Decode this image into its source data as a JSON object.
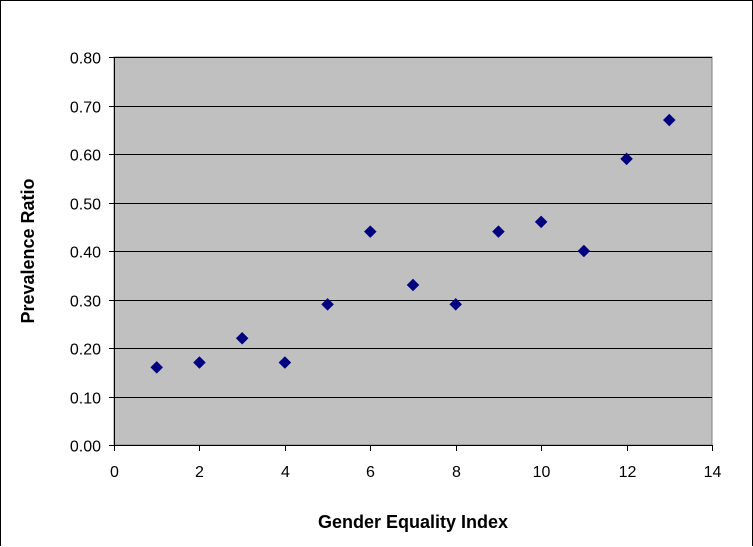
{
  "chart_data": {
    "type": "scatter",
    "title": "",
    "xlabel": "Gender Equality Index",
    "ylabel": "Prevalence Ratio",
    "xlim": [
      0,
      14
    ],
    "ylim": [
      0,
      0.8
    ],
    "xticks": [
      0,
      2,
      4,
      6,
      8,
      10,
      12,
      14
    ],
    "yticks": [
      0.0,
      0.1,
      0.2,
      0.3,
      0.4,
      0.5,
      0.6,
      0.7,
      0.8
    ],
    "xtick_labels": [
      "0",
      "2",
      "4",
      "6",
      "8",
      "10",
      "12",
      "14"
    ],
    "ytick_labels": [
      "0.00",
      "0.10",
      "0.20",
      "0.30",
      "0.40",
      "0.50",
      "0.60",
      "0.70",
      "0.80"
    ],
    "grid": "horizontal",
    "legend": "none",
    "points": [
      {
        "x": 1,
        "y": 0.16
      },
      {
        "x": 2,
        "y": 0.17
      },
      {
        "x": 3,
        "y": 0.22
      },
      {
        "x": 4,
        "y": 0.17
      },
      {
        "x": 5,
        "y": 0.29
      },
      {
        "x": 6,
        "y": 0.44
      },
      {
        "x": 7,
        "y": 0.33
      },
      {
        "x": 8,
        "y": 0.29
      },
      {
        "x": 9,
        "y": 0.44
      },
      {
        "x": 10,
        "y": 0.46
      },
      {
        "x": 11,
        "y": 0.4
      },
      {
        "x": 12,
        "y": 0.59
      },
      {
        "x": 13,
        "y": 0.67
      }
    ],
    "colors": {
      "plot_background": "#c0c0c0",
      "marker": "#000080",
      "gridline": "#000000"
    }
  }
}
